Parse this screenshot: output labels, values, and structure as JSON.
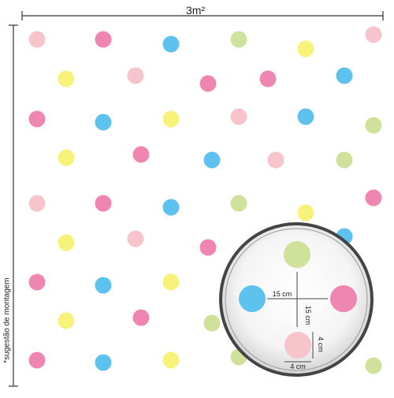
{
  "area_label": "3m²",
  "side_note": "*sugestão de montagem",
  "colors": {
    "pink": "#ef86b1",
    "light_pink": "#f8c4cc",
    "blue": "#5dc3ee",
    "green": "#cfe19a",
    "yellow": "#f7f27a"
  },
  "zoom": {
    "h_spacing": "15 cm",
    "v_spacing": "15 cm",
    "dot_width": "4 cm",
    "dot_height": "4 cm"
  }
}
